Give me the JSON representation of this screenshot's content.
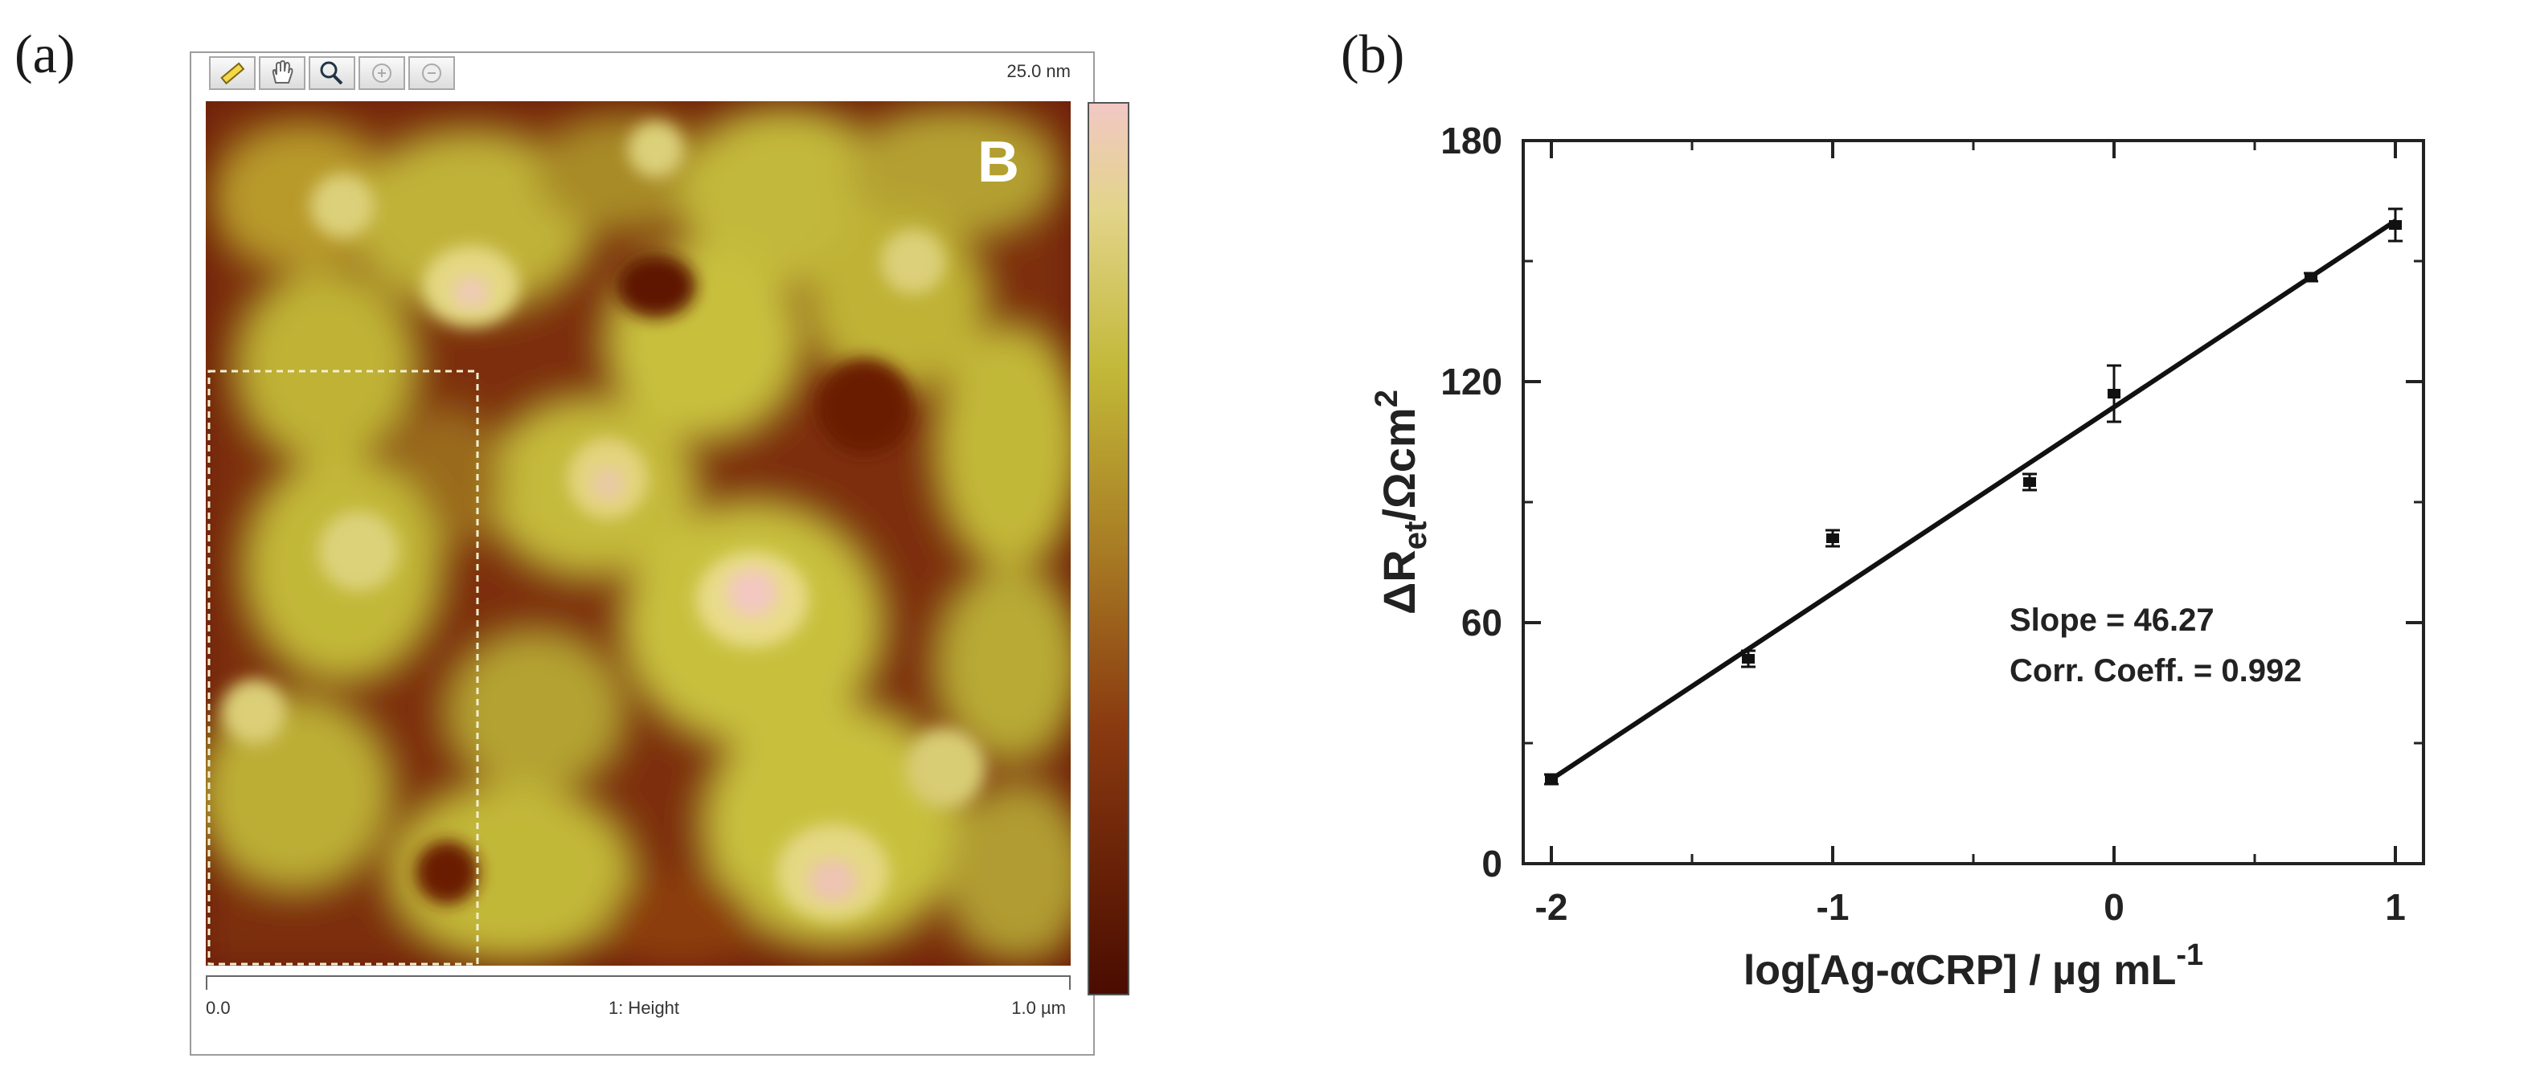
{
  "panel_a": {
    "label": "(a)",
    "toolbar": {
      "tools": [
        "ruler-icon",
        "pan-hand-icon",
        "magnifier-icon",
        "zoom-in-icon",
        "zoom-out-icon"
      ]
    },
    "scale_max": "25.0 nm",
    "image_label": "B",
    "x_min": "0.0",
    "channel_label": "1: Height",
    "x_max": "1.0 µm",
    "colors": {
      "dark": "#5a1400",
      "mid": "#a0501a",
      "light": "#c8c23a",
      "highlight": "#e8b8b0"
    }
  },
  "panel_b": {
    "label": "(b)",
    "annotation": {
      "slope": "Slope = 46.27",
      "corr": "Corr. Coeff. = 0.992"
    }
  },
  "chart_data": {
    "type": "scatter",
    "title": "",
    "xlabel": "log[Ag-αCRP] / µg mL",
    "xlabel_superscript": "-1",
    "ylabel": "ΔR",
    "ylabel_subscript": "et",
    "ylabel_suffix": "/Ωcm",
    "ylabel_superscript": "2",
    "xlim": [
      -2.1,
      1.1
    ],
    "ylim": [
      0,
      180
    ],
    "xticks": [
      -2,
      -1,
      0,
      1
    ],
    "xtick_labels": [
      "-2",
      "-1",
      "0",
      "1"
    ],
    "yticks": [
      0,
      60,
      120,
      180
    ],
    "ytick_labels": [
      "0",
      "60",
      "120",
      "180"
    ],
    "grid": false,
    "series": [
      {
        "points": [
          {
            "x": -2,
            "y": 21,
            "err": 1.2
          },
          {
            "x": -1.3,
            "y": 51,
            "err": 2
          },
          {
            "x": -1,
            "y": 81,
            "err": 2
          },
          {
            "x": -0.3,
            "y": 95,
            "err": 2
          },
          {
            "x": 0,
            "y": 117,
            "err": 7
          },
          {
            "x": 0.7,
            "y": 146,
            "err": 1
          },
          {
            "x": 1,
            "y": 159,
            "err": 4
          }
        ]
      }
    ],
    "fit_line": {
      "x": [
        -2,
        1
      ],
      "y": [
        21,
        160
      ]
    }
  }
}
